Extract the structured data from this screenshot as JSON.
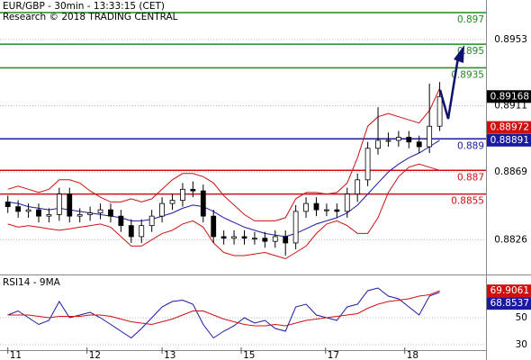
{
  "chart_data": [
    {
      "type": "candlestick",
      "title": "EUR/GBP - 30min - 13:33:15 (CET)",
      "subtitle": "Research © 2018 TRADING CENTRAL",
      "xlim": [
        -0.5,
        46.5
      ],
      "ylim": [
        0.8804,
        0.8978
      ],
      "yticks": [
        0.8953,
        0.8911,
        0.8869,
        0.8826
      ],
      "grid": true,
      "color": "#000000",
      "open": [
        0.885,
        0.8847,
        0.8844,
        0.8845,
        0.8841,
        0.8842,
        0.8855,
        0.8841,
        0.8842,
        0.8843,
        0.8845,
        0.8841,
        0.8835,
        0.8828,
        0.8835,
        0.8841,
        0.8849,
        0.8851,
        0.8858,
        0.8857,
        0.8841,
        0.8828,
        0.8827,
        0.8828,
        0.8827,
        0.8827,
        0.8825,
        0.8828,
        0.8824,
        0.8844,
        0.8849,
        0.8845,
        0.8845,
        0.8844,
        0.8855,
        0.8864,
        0.8884,
        0.8889,
        0.8889,
        0.8891,
        0.8888,
        0.8885,
        0.8898
      ],
      "high": [
        0.8854,
        0.8851,
        0.8849,
        0.8849,
        0.8846,
        0.8859,
        0.8859,
        0.8846,
        0.8847,
        0.8849,
        0.8849,
        0.8845,
        0.8839,
        0.8839,
        0.8845,
        0.8853,
        0.8855,
        0.8862,
        0.8863,
        0.8861,
        0.8845,
        0.8832,
        0.8832,
        0.8832,
        0.8831,
        0.8831,
        0.8832,
        0.8832,
        0.8848,
        0.8853,
        0.8853,
        0.8849,
        0.8849,
        0.8859,
        0.8868,
        0.8888,
        0.891,
        0.8894,
        0.8895,
        0.8895,
        0.8892,
        0.8925,
        0.8926
      ],
      "low": [
        0.8843,
        0.884,
        0.884,
        0.8837,
        0.8837,
        0.8838,
        0.8837,
        0.8837,
        0.8838,
        0.8839,
        0.8837,
        0.8831,
        0.8824,
        0.8824,
        0.8831,
        0.8837,
        0.8845,
        0.8847,
        0.8853,
        0.8837,
        0.8824,
        0.8823,
        0.8823,
        0.8823,
        0.8823,
        0.8821,
        0.8821,
        0.8816,
        0.882,
        0.884,
        0.8841,
        0.8841,
        0.884,
        0.884,
        0.885,
        0.886,
        0.888,
        0.8885,
        0.8885,
        0.8884,
        0.8881,
        0.8881,
        0.8895
      ],
      "close": [
        0.8847,
        0.8844,
        0.8845,
        0.8841,
        0.8842,
        0.8855,
        0.8841,
        0.8842,
        0.8843,
        0.8845,
        0.8841,
        0.8835,
        0.8828,
        0.8835,
        0.8841,
        0.8849,
        0.8851,
        0.8858,
        0.8857,
        0.8841,
        0.8828,
        0.8827,
        0.8828,
        0.8827,
        0.8827,
        0.8825,
        0.8828,
        0.8824,
        0.8844,
        0.8849,
        0.8845,
        0.8845,
        0.8844,
        0.8855,
        0.8864,
        0.8884,
        0.8889,
        0.8889,
        0.8891,
        0.8888,
        0.8885,
        0.8898,
        0.89168
      ],
      "overlays": [
        {
          "color": "#cc1111",
          "values": [
            0.8858,
            0.886,
            0.8858,
            0.8856,
            0.8858,
            0.8864,
            0.8864,
            0.8862,
            0.8857,
            0.8853,
            0.885,
            0.885,
            0.8852,
            0.885,
            0.8852,
            0.8858,
            0.8864,
            0.8868,
            0.8868,
            0.8866,
            0.8862,
            0.8854,
            0.8848,
            0.8842,
            0.8838,
            0.8838,
            0.8838,
            0.884,
            0.8852,
            0.8856,
            0.8856,
            0.8855,
            0.8856,
            0.8862,
            0.8878,
            0.8898,
            0.8904,
            0.8906,
            0.8904,
            0.8902,
            0.89,
            0.8908,
            0.8922
          ]
        },
        {
          "color": "#cc1111",
          "values": [
            0.8836,
            0.8834,
            0.8835,
            0.8834,
            0.8833,
            0.8832,
            0.8833,
            0.8834,
            0.8835,
            0.8836,
            0.8834,
            0.8828,
            0.8822,
            0.8822,
            0.8826,
            0.883,
            0.8832,
            0.8836,
            0.8838,
            0.8834,
            0.8824,
            0.8818,
            0.8816,
            0.8816,
            0.8817,
            0.8818,
            0.8816,
            0.8814,
            0.8818,
            0.8822,
            0.883,
            0.8836,
            0.8838,
            0.8835,
            0.883,
            0.883,
            0.884,
            0.8856,
            0.8866,
            0.8872,
            0.8874,
            0.8872,
            0.887
          ]
        },
        {
          "color": "#1a1aa0",
          "values": [
            0.885,
            0.8849,
            0.8847,
            0.8846,
            0.8845,
            0.8846,
            0.8845,
            0.8844,
            0.8843,
            0.8842,
            0.8841,
            0.884,
            0.8838,
            0.8838,
            0.8839,
            0.8841,
            0.8843,
            0.8846,
            0.8848,
            0.8847,
            0.8844,
            0.884,
            0.8837,
            0.8834,
            0.8832,
            0.883,
            0.8829,
            0.8828,
            0.883,
            0.8833,
            0.8836,
            0.8838,
            0.884,
            0.8843,
            0.8848,
            0.8855,
            0.8862,
            0.8869,
            0.8874,
            0.8878,
            0.8881,
            0.8885,
            0.88891
          ]
        }
      ],
      "levels": [
        {
          "value": 0.897,
          "color": "#1e8c1e"
        },
        {
          "value": 0.895,
          "color": "#1e8c1e"
        },
        {
          "value": 0.8935,
          "color": "#1e8c1e"
        },
        {
          "value": 0.889,
          "color": "#1a1aa0"
        },
        {
          "value": 0.887,
          "color": "#d01010"
        },
        {
          "value": 0.8855,
          "color": "#d01010"
        }
      ],
      "markers": [
        {
          "value": 0.89168,
          "color": "#000000"
        },
        {
          "value": 0.88972,
          "color": "#d01010"
        },
        {
          "value": 0.88891,
          "color": "#1a1aa0"
        }
      ]
    },
    {
      "type": "line",
      "title": "RSI14 - 9MA",
      "xlim": [
        -0.5,
        46.5
      ],
      "xticks": [
        {
          "value": 0,
          "label": "11"
        },
        {
          "value": 7.7,
          "label": "12"
        },
        {
          "value": 15,
          "label": "13"
        },
        {
          "value": 22.7,
          "label": "15"
        },
        {
          "value": 30.9,
          "label": "17"
        },
        {
          "value": 38.6,
          "label": "18"
        }
      ],
      "ylim": [
        22,
        80
      ],
      "yticks": [
        50,
        30
      ],
      "grid": true,
      "series": [
        {
          "color": "#1a1aa0",
          "values": [
            52,
            55,
            50,
            45,
            48,
            62,
            50,
            52,
            54,
            50,
            45,
            40,
            35,
            42,
            50,
            58,
            62,
            63,
            60,
            45,
            35,
            40,
            44,
            50,
            46,
            48,
            42,
            40,
            58,
            60,
            52,
            50,
            48,
            58,
            60,
            70,
            72,
            66,
            64,
            58,
            52,
            66,
            68.8537
          ]
        },
        {
          "color": "#d01010",
          "values": [
            52,
            52,
            52,
            51,
            50,
            51,
            51,
            51,
            52,
            52,
            51,
            49,
            47,
            46,
            45,
            47,
            49,
            52,
            55,
            55,
            52,
            49,
            47,
            45,
            44,
            44,
            45,
            44,
            46,
            48,
            49,
            50,
            51,
            52,
            53,
            57,
            60,
            62,
            63,
            64,
            66,
            67,
            69.9061
          ]
        }
      ],
      "markers": [
        {
          "value": 69.9061,
          "color": "#d01010"
        },
        {
          "value": 68.8537,
          "color": "#1a1aa0"
        }
      ]
    }
  ]
}
